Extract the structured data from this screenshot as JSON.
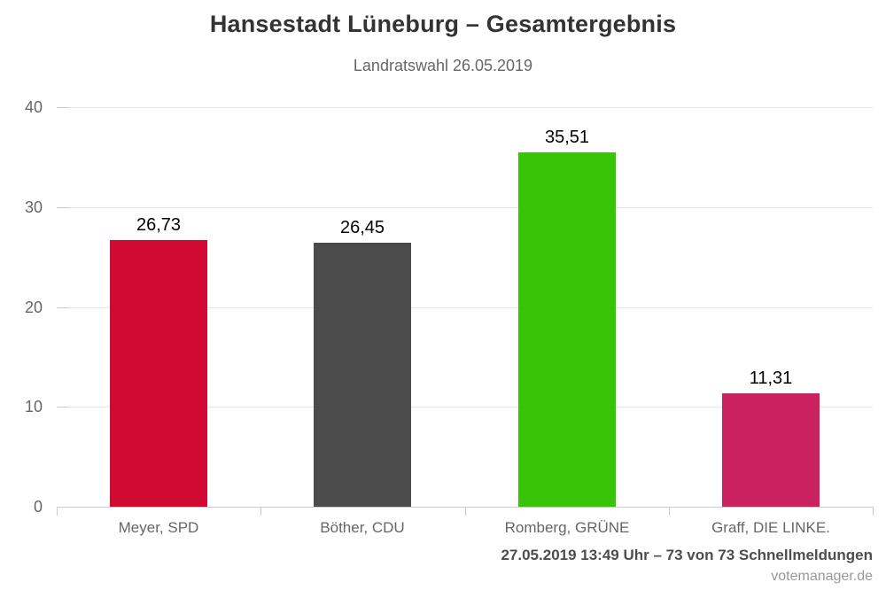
{
  "chart_data": {
    "type": "bar",
    "title": "Hansestadt Lüneburg – Gesamtergebnis",
    "subtitle": "Landratswahl 26.05.2019",
    "categories": [
      "Meyer, SPD",
      "Böther, CDU",
      "Romberg, GRÜNE",
      "Graff, DIE LINKE."
    ],
    "values": [
      26.73,
      26.45,
      35.51,
      11.31
    ],
    "value_labels": [
      "26,73",
      "26,45",
      "35,51",
      "11,31"
    ],
    "bar_colors": [
      "#d10a33",
      "#4b4b4b",
      "#3ac408",
      "#ca2161"
    ],
    "ylim": [
      0,
      40
    ],
    "yticks": [
      0,
      10,
      20,
      30,
      40
    ],
    "xlabel": "",
    "ylabel": "",
    "grid": true,
    "legend": "none"
  },
  "colors": {
    "gridline": "#e6e6e6",
    "axis": "#cccccc",
    "y_tick": "#c9c9c9"
  },
  "footer": {
    "status": "27.05.2019 13:49 Uhr – 73 von 73 Schnellmeldungen",
    "credit": "votemanager.de"
  }
}
